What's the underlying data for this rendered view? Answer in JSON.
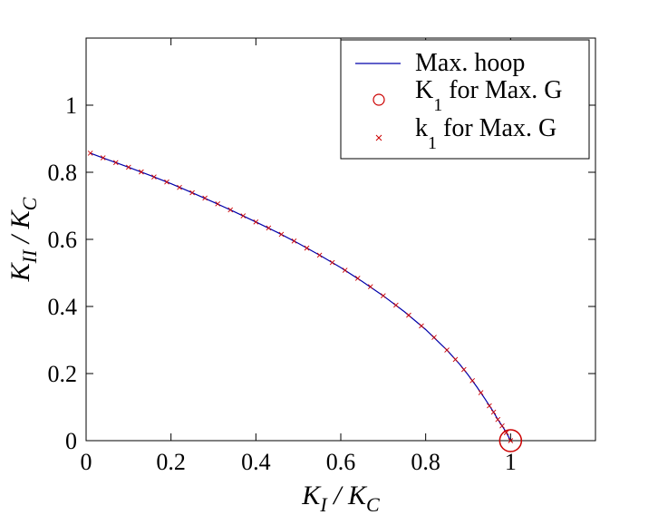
{
  "chart_data": {
    "type": "line",
    "title": "",
    "xlabel": {
      "main": "K",
      "sub_1": "I",
      "sep": " / ",
      "main_2": "K",
      "sub_2": "C"
    },
    "ylabel": {
      "main": "K",
      "sub_1": "II",
      "sep": " / ",
      "main_2": "K",
      "sub_2": "C"
    },
    "xlim": [
      0,
      1.2
    ],
    "ylim": [
      0,
      1.2
    ],
    "xticks": [
      0,
      0.2,
      0.4,
      0.6,
      0.8,
      1
    ],
    "xtick_labels": [
      "0",
      "0.2",
      "0.4",
      "0.6",
      "0.8",
      "1"
    ],
    "yticks": [
      0,
      0.2,
      0.4,
      0.6,
      0.8,
      1
    ],
    "ytick_labels": [
      "0",
      "0.2",
      "0.4",
      "0.6",
      "0.8",
      "1"
    ],
    "grid": false,
    "legend_position": "top-right",
    "series": [
      {
        "name": "Max. hoop",
        "legend": {
          "main": "Max. hoop",
          "sub": "",
          "rest": ""
        },
        "style": "line",
        "color": "#0000aa",
        "x": [
          0.01,
          0.05,
          0.1,
          0.15,
          0.2,
          0.25,
          0.3,
          0.35,
          0.4,
          0.45,
          0.5,
          0.55,
          0.6,
          0.65,
          0.7,
          0.75,
          0.8,
          0.85,
          0.88,
          0.9,
          0.92,
          0.94,
          0.96,
          0.97,
          0.98,
          0.99,
          0.995,
          1.0
        ],
        "y": [
          0.857,
          0.838,
          0.815,
          0.791,
          0.766,
          0.739,
          0.711,
          0.682,
          0.652,
          0.621,
          0.588,
          0.553,
          0.516,
          0.475,
          0.432,
          0.384,
          0.331,
          0.27,
          0.228,
          0.196,
          0.161,
          0.124,
          0.085,
          0.063,
          0.044,
          0.024,
          0.012,
          0.0
        ]
      },
      {
        "name": "K1 for Max. G",
        "legend": {
          "main": "K",
          "sub": "1",
          "rest": " for Max. G"
        },
        "style": "circle",
        "color": "#cc0000",
        "x": [
          1.0
        ],
        "y": [
          0.0
        ]
      },
      {
        "name": "k1 for Max. G",
        "legend": {
          "main": "k",
          "sub": "1",
          "rest": " for Max. G"
        },
        "style": "cross",
        "color": "#cc0000",
        "x": [
          0.01,
          0.04,
          0.07,
          0.1,
          0.13,
          0.16,
          0.19,
          0.22,
          0.25,
          0.28,
          0.31,
          0.34,
          0.37,
          0.4,
          0.43,
          0.46,
          0.49,
          0.52,
          0.55,
          0.58,
          0.61,
          0.64,
          0.67,
          0.7,
          0.73,
          0.76,
          0.79,
          0.82,
          0.85,
          0.87,
          0.89,
          0.91,
          0.93,
          0.95,
          0.96,
          0.97,
          0.98,
          0.99,
          1.0
        ],
        "y": [
          0.857,
          0.843,
          0.829,
          0.815,
          0.801,
          0.786,
          0.771,
          0.755,
          0.739,
          0.723,
          0.706,
          0.688,
          0.67,
          0.652,
          0.634,
          0.615,
          0.595,
          0.574,
          0.553,
          0.531,
          0.508,
          0.484,
          0.459,
          0.432,
          0.404,
          0.374,
          0.342,
          0.308,
          0.27,
          0.242,
          0.212,
          0.179,
          0.143,
          0.104,
          0.085,
          0.063,
          0.044,
          0.024,
          0.0
        ]
      }
    ]
  }
}
